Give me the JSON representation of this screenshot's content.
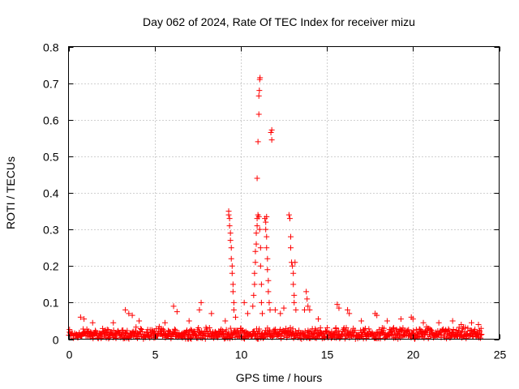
{
  "chart_data": {
    "type": "scatter",
    "title": "Day 062 of 2024, Rate Of TEC Index for receiver mizu",
    "xlabel": "GPS time / hours",
    "ylabel": "ROTI / TECUs",
    "xlim": [
      0,
      25
    ],
    "ylim": [
      0,
      0.8
    ],
    "x_ticks": [
      "0",
      "5",
      "10",
      "15",
      "20",
      "25"
    ],
    "y_ticks": [
      "0",
      "0.1",
      "0.2",
      "0.3",
      "0.4",
      "0.5",
      "0.6",
      "0.7",
      "0.8"
    ],
    "grid": true,
    "marker": "plus",
    "series": [
      {
        "name": "ROTI",
        "color": "#ff0000",
        "baseline": {
          "x_range": [
            0,
            24
          ],
          "y_range": [
            0.0,
            0.035
          ],
          "count": 900
        },
        "points": [
          {
            "x": 0.7,
            "y": 0.06
          },
          {
            "x": 0.9,
            "y": 0.055
          },
          {
            "x": 1.4,
            "y": 0.045
          },
          {
            "x": 2.6,
            "y": 0.045
          },
          {
            "x": 3.3,
            "y": 0.08
          },
          {
            "x": 3.5,
            "y": 0.07
          },
          {
            "x": 3.7,
            "y": 0.065
          },
          {
            "x": 4.1,
            "y": 0.05
          },
          {
            "x": 5.6,
            "y": 0.045
          },
          {
            "x": 6.1,
            "y": 0.09
          },
          {
            "x": 6.3,
            "y": 0.075
          },
          {
            "x": 7.0,
            "y": 0.05
          },
          {
            "x": 7.6,
            "y": 0.08
          },
          {
            "x": 7.7,
            "y": 0.1
          },
          {
            "x": 8.3,
            "y": 0.07
          },
          {
            "x": 9.1,
            "y": 0.05
          },
          {
            "x": 9.3,
            "y": 0.35
          },
          {
            "x": 9.3,
            "y": 0.34
          },
          {
            "x": 9.35,
            "y": 0.33
          },
          {
            "x": 9.35,
            "y": 0.31
          },
          {
            "x": 9.4,
            "y": 0.29
          },
          {
            "x": 9.4,
            "y": 0.27
          },
          {
            "x": 9.45,
            "y": 0.25
          },
          {
            "x": 9.45,
            "y": 0.22
          },
          {
            "x": 9.5,
            "y": 0.2
          },
          {
            "x": 9.5,
            "y": 0.18
          },
          {
            "x": 9.55,
            "y": 0.15
          },
          {
            "x": 9.55,
            "y": 0.13
          },
          {
            "x": 9.6,
            "y": 0.1
          },
          {
            "x": 9.6,
            "y": 0.08
          },
          {
            "x": 9.7,
            "y": 0.06
          },
          {
            "x": 10.2,
            "y": 0.1
          },
          {
            "x": 10.4,
            "y": 0.07
          },
          {
            "x": 10.7,
            "y": 0.09
          },
          {
            "x": 10.75,
            "y": 0.12
          },
          {
            "x": 10.8,
            "y": 0.15
          },
          {
            "x": 10.8,
            "y": 0.18
          },
          {
            "x": 10.85,
            "y": 0.21
          },
          {
            "x": 10.85,
            "y": 0.24
          },
          {
            "x": 10.9,
            "y": 0.26
          },
          {
            "x": 10.9,
            "y": 0.29
          },
          {
            "x": 10.95,
            "y": 0.31
          },
          {
            "x": 10.95,
            "y": 0.33
          },
          {
            "x": 11.0,
            "y": 0.34
          },
          {
            "x": 11.0,
            "y": 0.54
          },
          {
            "x": 10.95,
            "y": 0.44
          },
          {
            "x": 11.05,
            "y": 0.615
          },
          {
            "x": 11.05,
            "y": 0.665
          },
          {
            "x": 11.08,
            "y": 0.68
          },
          {
            "x": 11.1,
            "y": 0.71
          },
          {
            "x": 11.12,
            "y": 0.715
          },
          {
            "x": 11.05,
            "y": 0.335
          },
          {
            "x": 11.1,
            "y": 0.3
          },
          {
            "x": 11.15,
            "y": 0.25
          },
          {
            "x": 11.15,
            "y": 0.2
          },
          {
            "x": 11.2,
            "y": 0.15
          },
          {
            "x": 11.2,
            "y": 0.1
          },
          {
            "x": 11.25,
            "y": 0.07
          },
          {
            "x": 11.4,
            "y": 0.33
          },
          {
            "x": 11.45,
            "y": 0.32
          },
          {
            "x": 11.45,
            "y": 0.3
          },
          {
            "x": 11.5,
            "y": 0.28
          },
          {
            "x": 11.5,
            "y": 0.25
          },
          {
            "x": 11.55,
            "y": 0.22
          },
          {
            "x": 11.55,
            "y": 0.19
          },
          {
            "x": 11.6,
            "y": 0.16
          },
          {
            "x": 11.6,
            "y": 0.13
          },
          {
            "x": 11.65,
            "y": 0.1
          },
          {
            "x": 11.7,
            "y": 0.08
          },
          {
            "x": 11.5,
            "y": 0.335
          },
          {
            "x": 11.75,
            "y": 0.565
          },
          {
            "x": 11.8,
            "y": 0.545
          },
          {
            "x": 11.8,
            "y": 0.572
          },
          {
            "x": 12.0,
            "y": 0.08
          },
          {
            "x": 12.3,
            "y": 0.07
          },
          {
            "x": 12.5,
            "y": 0.085
          },
          {
            "x": 12.8,
            "y": 0.34
          },
          {
            "x": 12.85,
            "y": 0.33
          },
          {
            "x": 12.9,
            "y": 0.28
          },
          {
            "x": 12.9,
            "y": 0.25
          },
          {
            "x": 12.95,
            "y": 0.21
          },
          {
            "x": 13.0,
            "y": 0.2
          },
          {
            "x": 13.05,
            "y": 0.18
          },
          {
            "x": 13.05,
            "y": 0.15
          },
          {
            "x": 13.1,
            "y": 0.12
          },
          {
            "x": 13.1,
            "y": 0.1
          },
          {
            "x": 13.15,
            "y": 0.21
          },
          {
            "x": 13.2,
            "y": 0.08
          },
          {
            "x": 13.8,
            "y": 0.13
          },
          {
            "x": 13.85,
            "y": 0.11
          },
          {
            "x": 13.9,
            "y": 0.09
          },
          {
            "x": 13.7,
            "y": 0.08
          },
          {
            "x": 14.0,
            "y": 0.08
          },
          {
            "x": 14.5,
            "y": 0.055
          },
          {
            "x": 15.6,
            "y": 0.095
          },
          {
            "x": 15.7,
            "y": 0.085
          },
          {
            "x": 16.2,
            "y": 0.08
          },
          {
            "x": 16.3,
            "y": 0.07
          },
          {
            "x": 17.0,
            "y": 0.05
          },
          {
            "x": 17.8,
            "y": 0.07
          },
          {
            "x": 17.9,
            "y": 0.065
          },
          {
            "x": 18.5,
            "y": 0.05
          },
          {
            "x": 19.3,
            "y": 0.055
          },
          {
            "x": 19.9,
            "y": 0.06
          },
          {
            "x": 20.0,
            "y": 0.055
          },
          {
            "x": 20.6,
            "y": 0.045
          },
          {
            "x": 21.5,
            "y": 0.045
          },
          {
            "x": 22.3,
            "y": 0.05
          },
          {
            "x": 22.8,
            "y": 0.04
          },
          {
            "x": 23.4,
            "y": 0.045
          },
          {
            "x": 23.8,
            "y": 0.04
          }
        ]
      }
    ]
  }
}
